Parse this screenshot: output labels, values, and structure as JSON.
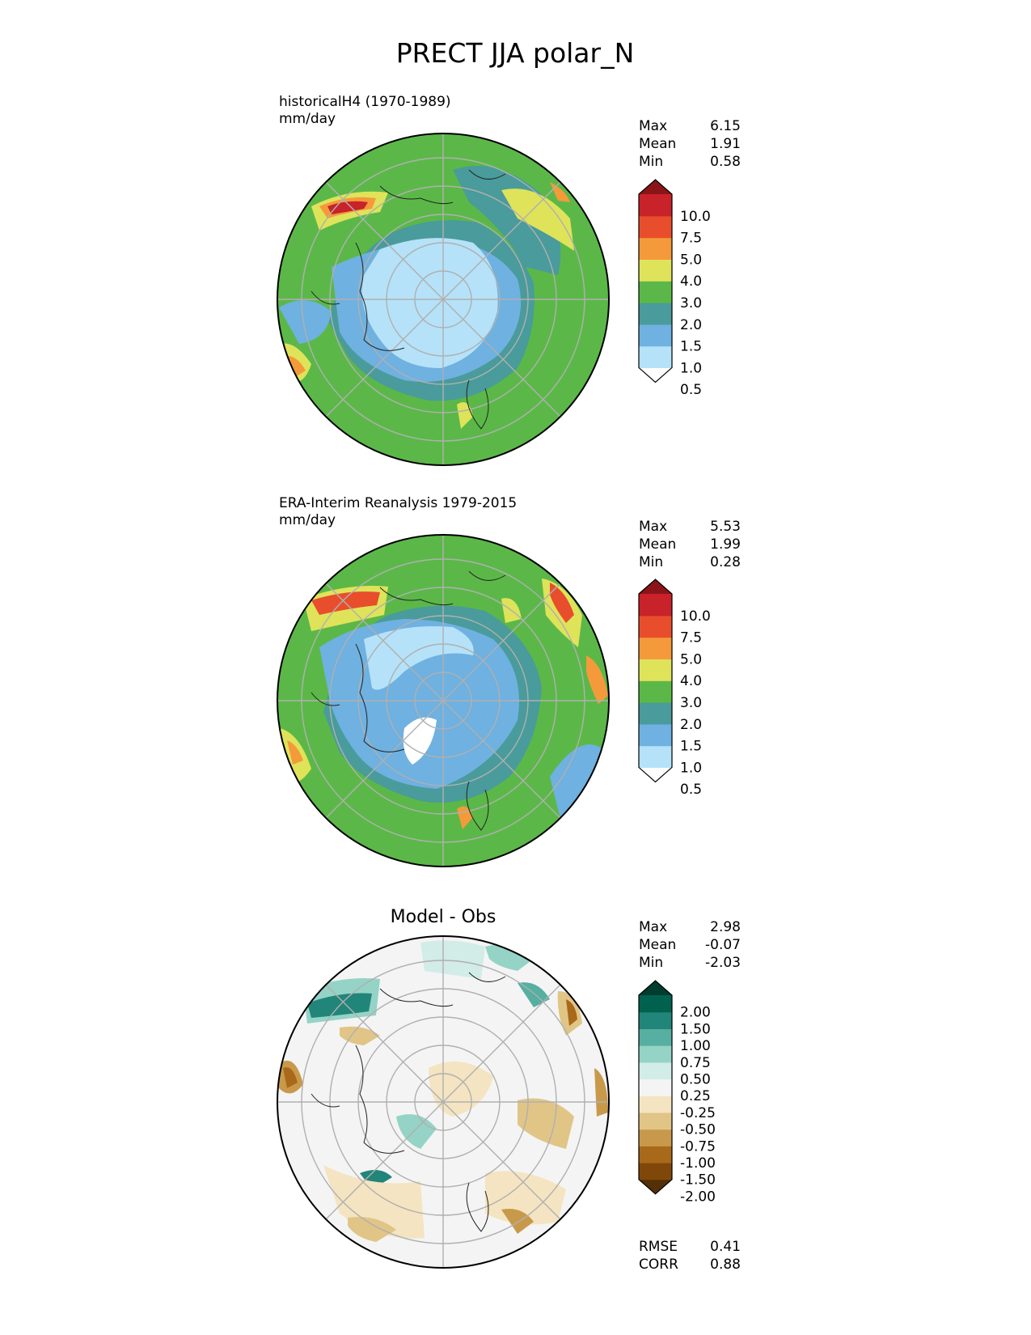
{
  "figure": {
    "title": "PRECT JJA polar_N"
  },
  "stat_labels": {
    "max": "Max",
    "mean": "Mean",
    "min": "Min",
    "rmse": "RMSE",
    "corr": "CORR"
  },
  "chart_data": [
    {
      "type": "heatmap",
      "projection": "north-polar-stereographic",
      "title": "historicalH4 (1970-1989)",
      "units": "mm/day",
      "stats": {
        "max": "6.15",
        "mean": "1.91",
        "min": "0.58"
      },
      "colorbar": {
        "labels": [
          "10.0",
          "7.5",
          "5.0",
          "4.0",
          "3.0",
          "2.0",
          "1.5",
          "1.0",
          "0.5"
        ],
        "colors": [
          "#ffffff",
          "#b5e2f8",
          "#6fb1e0",
          "#4a9b9b",
          "#5bb848",
          "#dfe35a",
          "#f49a3a",
          "#e84e2c",
          "#c8222a",
          "#8b1419"
        ]
      }
    },
    {
      "type": "heatmap",
      "projection": "north-polar-stereographic",
      "title": "ERA-Interim Reanalysis 1979-2015",
      "units": "mm/day",
      "stats": {
        "max": "5.53",
        "mean": "1.99",
        "min": "0.28"
      },
      "colorbar": {
        "labels": [
          "10.0",
          "7.5",
          "5.0",
          "4.0",
          "3.0",
          "2.0",
          "1.5",
          "1.0",
          "0.5"
        ],
        "colors": [
          "#ffffff",
          "#b5e2f8",
          "#6fb1e0",
          "#4a9b9b",
          "#5bb848",
          "#dfe35a",
          "#f49a3a",
          "#e84e2c",
          "#c8222a",
          "#8b1419"
        ]
      }
    },
    {
      "type": "heatmap",
      "projection": "north-polar-stereographic",
      "title": "Model - Obs",
      "stats": {
        "max": "2.98",
        "mean": "-0.07",
        "min": "-2.03",
        "rmse": "0.41",
        "corr": "0.88"
      },
      "colorbar": {
        "labels": [
          "2.00",
          "1.50",
          "1.00",
          "0.75",
          "0.50",
          "0.25",
          "-0.25",
          "-0.50",
          "-0.75",
          "-1.00",
          "-1.50",
          "-2.00"
        ],
        "colors": [
          "#543005",
          "#7f470a",
          "#a8691a",
          "#c9994b",
          "#e0c587",
          "#f4e4c1",
          "#f4f4f4",
          "#d2ece7",
          "#95d3c6",
          "#56afa1",
          "#228579",
          "#00614f",
          "#003c30"
        ]
      }
    }
  ]
}
